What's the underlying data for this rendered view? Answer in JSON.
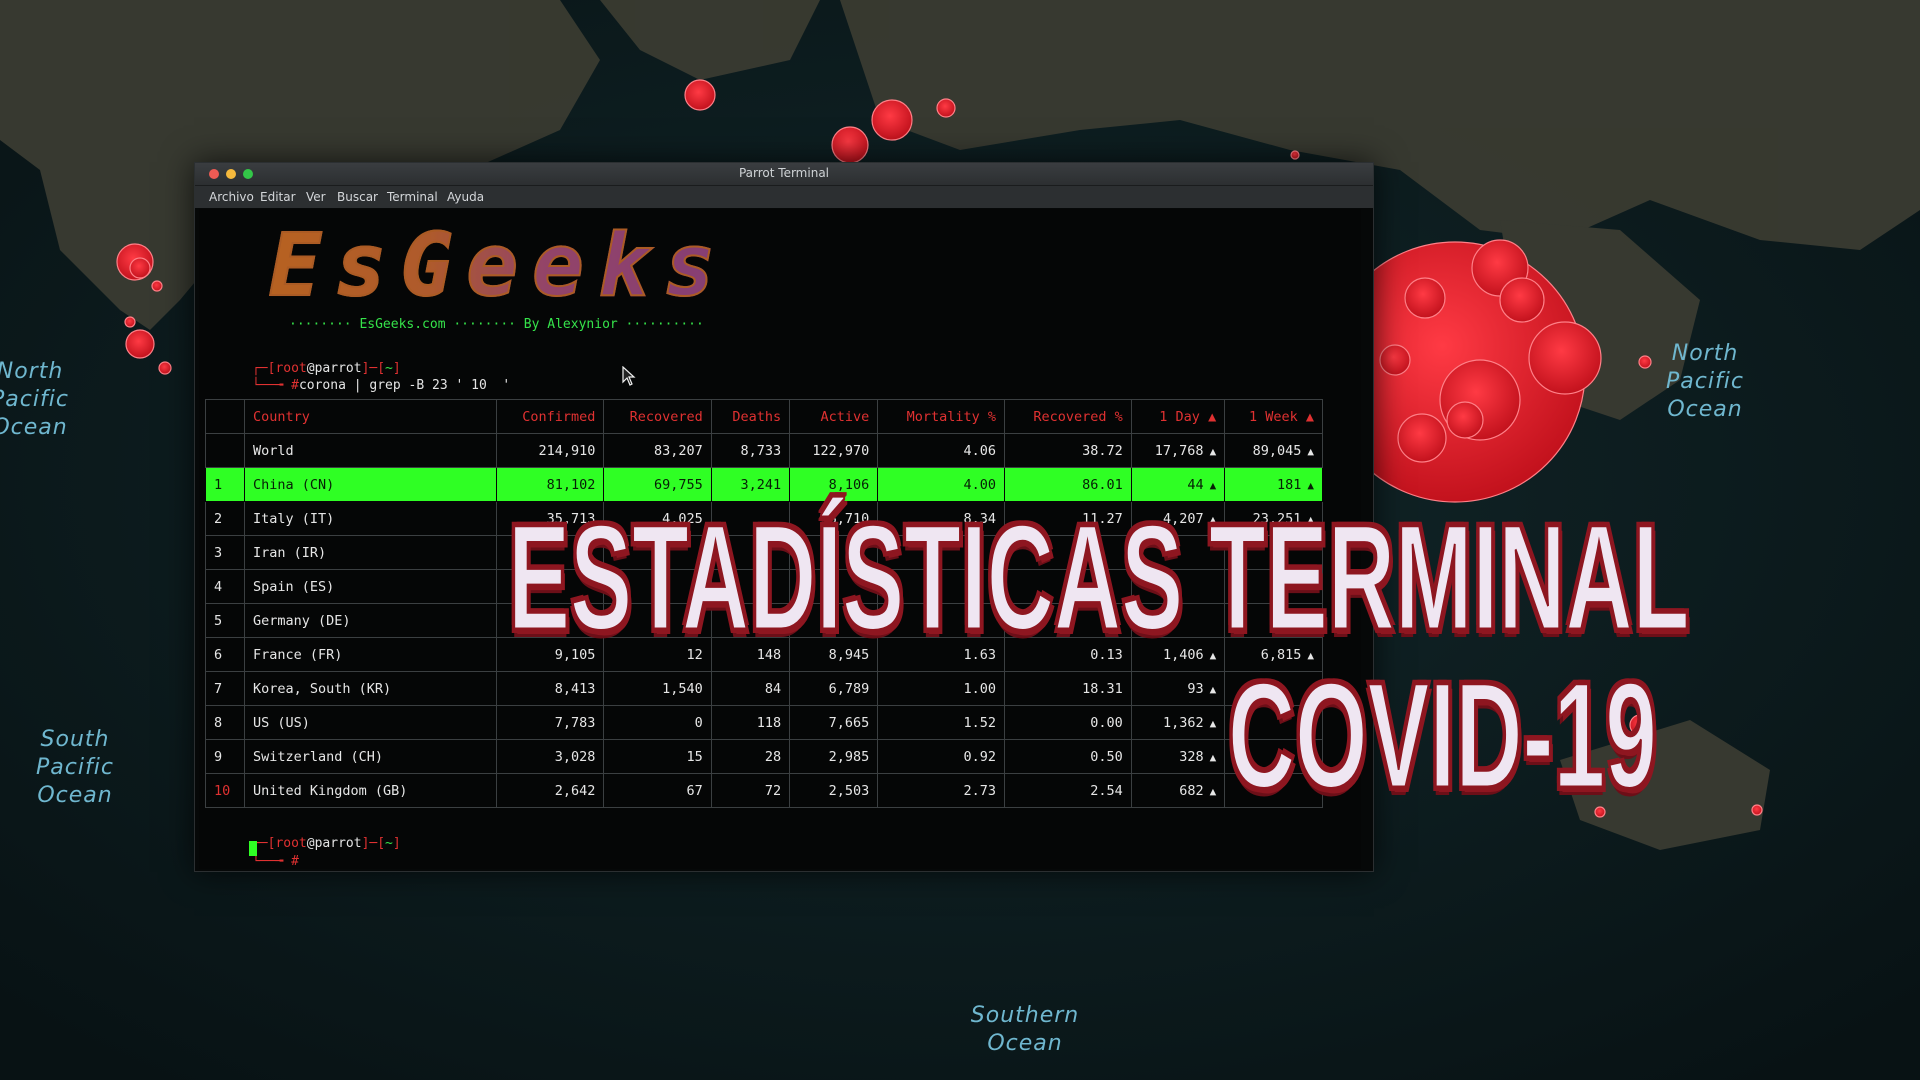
{
  "map": {
    "ocean_labels": {
      "north_pacific_left": "North\nPacific\nOcean",
      "north_pacific_right": "North\nPacific\nOcean",
      "south_pacific": "South\nPacific\nOcean",
      "southern": "Southern\nOcean"
    },
    "colors": {
      "land": "#3b3c33",
      "sea": "#0d2226",
      "outbreak": "#e3202c"
    }
  },
  "window": {
    "title": "Parrot Terminal",
    "controls": {
      "close_color": "#ee5b54",
      "minimize_color": "#f5b93d",
      "maximize_color": "#33c748"
    },
    "menu": [
      "Archivo",
      "Editar",
      "Ver",
      "Buscar",
      "Terminal",
      "Ayuda"
    ]
  },
  "terminal": {
    "logo_text": "EsGeeks",
    "banner": "········ EsGeeks.com ········ By Alexynior ··········",
    "prompt": {
      "open_bracket": "┌─[",
      "user": "root",
      "at": "@",
      "host": "parrot",
      "path_sep": "]─[",
      "path": "~",
      "close_bracket": "]",
      "corner": "└──╼ ",
      "hash": "#"
    },
    "command": "corona | grep -B 23 ' 10  '",
    "table": {
      "headers": {
        "rank": "",
        "country": "Country",
        "confirmed": "Confirmed",
        "recovered": "Recovered",
        "deaths": "Deaths",
        "active": "Active",
        "mortality": "Mortality %",
        "recovered_pct": "Recovered %",
        "one_day": "1 Day ▲",
        "one_week": "1 Week ▲"
      },
      "rows": [
        {
          "rank": "",
          "country": "World",
          "confirmed": "214,910",
          "recovered": "83,207",
          "deaths": "8,733",
          "active": "122,970",
          "mortality": "4.06",
          "recovered_pct": "38.72",
          "one_day": "17,768",
          "one_week": "89,045",
          "highlight": false
        },
        {
          "rank": "1",
          "country": "China (CN)",
          "confirmed": "81,102",
          "recovered": "69,755",
          "deaths": "3,241",
          "active": "8,106",
          "mortality": "4.00",
          "recovered_pct": "86.01",
          "one_day": "44",
          "one_week": "181",
          "highlight": true
        },
        {
          "rank": "2",
          "country": "Italy (IT)",
          "confirmed": "35,713",
          "recovered": "4,025",
          "deaths": "",
          "active": "28,710",
          "mortality": "8.34",
          "recovered_pct": "11.27",
          "one_day": "4,207",
          "one_week": "23,251",
          "highlight": false
        },
        {
          "rank": "3",
          "country": "Iran (IR)",
          "confirmed": "",
          "recovered": "",
          "deaths": "",
          "active": "",
          "mortality": "",
          "recovered_pct": "",
          "one_day": "",
          "one_week": "",
          "highlight": false
        },
        {
          "rank": "4",
          "country": "Spain (ES)",
          "confirmed": "",
          "recovered": "",
          "deaths": "",
          "active": "",
          "mortality": "",
          "recovered_pct": "",
          "one_day": "",
          "one_week": "",
          "highlight": false
        },
        {
          "rank": "5",
          "country": "Germany (DE)",
          "confirmed": "",
          "recovered": "",
          "deaths": "",
          "active": "",
          "mortality": "",
          "recovered_pct": "",
          "one_day": "",
          "one_week": "",
          "highlight": false
        },
        {
          "rank": "6",
          "country": "France (FR)",
          "confirmed": "9,105",
          "recovered": "12",
          "deaths": "148",
          "active": "8,945",
          "mortality": "1.63",
          "recovered_pct": "0.13",
          "one_day": "1,406",
          "one_week": "6,815",
          "highlight": false
        },
        {
          "rank": "7",
          "country": "Korea, South (KR)",
          "confirmed": "8,413",
          "recovered": "1,540",
          "deaths": "84",
          "active": "6,789",
          "mortality": "1.00",
          "recovered_pct": "18.31",
          "one_day": "93",
          "one_week": "",
          "highlight": false
        },
        {
          "rank": "8",
          "country": "US (US)",
          "confirmed": "7,783",
          "recovered": "0",
          "deaths": "118",
          "active": "7,665",
          "mortality": "1.52",
          "recovered_pct": "0.00",
          "one_day": "1,362",
          "one_week": "",
          "highlight": false
        },
        {
          "rank": "9",
          "country": "Switzerland (CH)",
          "confirmed": "3,028",
          "recovered": "15",
          "deaths": "28",
          "active": "2,985",
          "mortality": "0.92",
          "recovered_pct": "0.50",
          "one_day": "328",
          "one_week": "",
          "highlight": false
        },
        {
          "rank": "10",
          "country": "United Kingdom (GB)",
          "confirmed": "2,642",
          "recovered": "67",
          "deaths": "72",
          "active": "2,503",
          "mortality": "2.73",
          "recovered_pct": "2.54",
          "one_day": "682",
          "one_week": "",
          "highlight": false
        }
      ]
    }
  },
  "overlay": {
    "line1": "ESTADÍSTICAS TERMINAL",
    "line2": "COVID-19"
  }
}
